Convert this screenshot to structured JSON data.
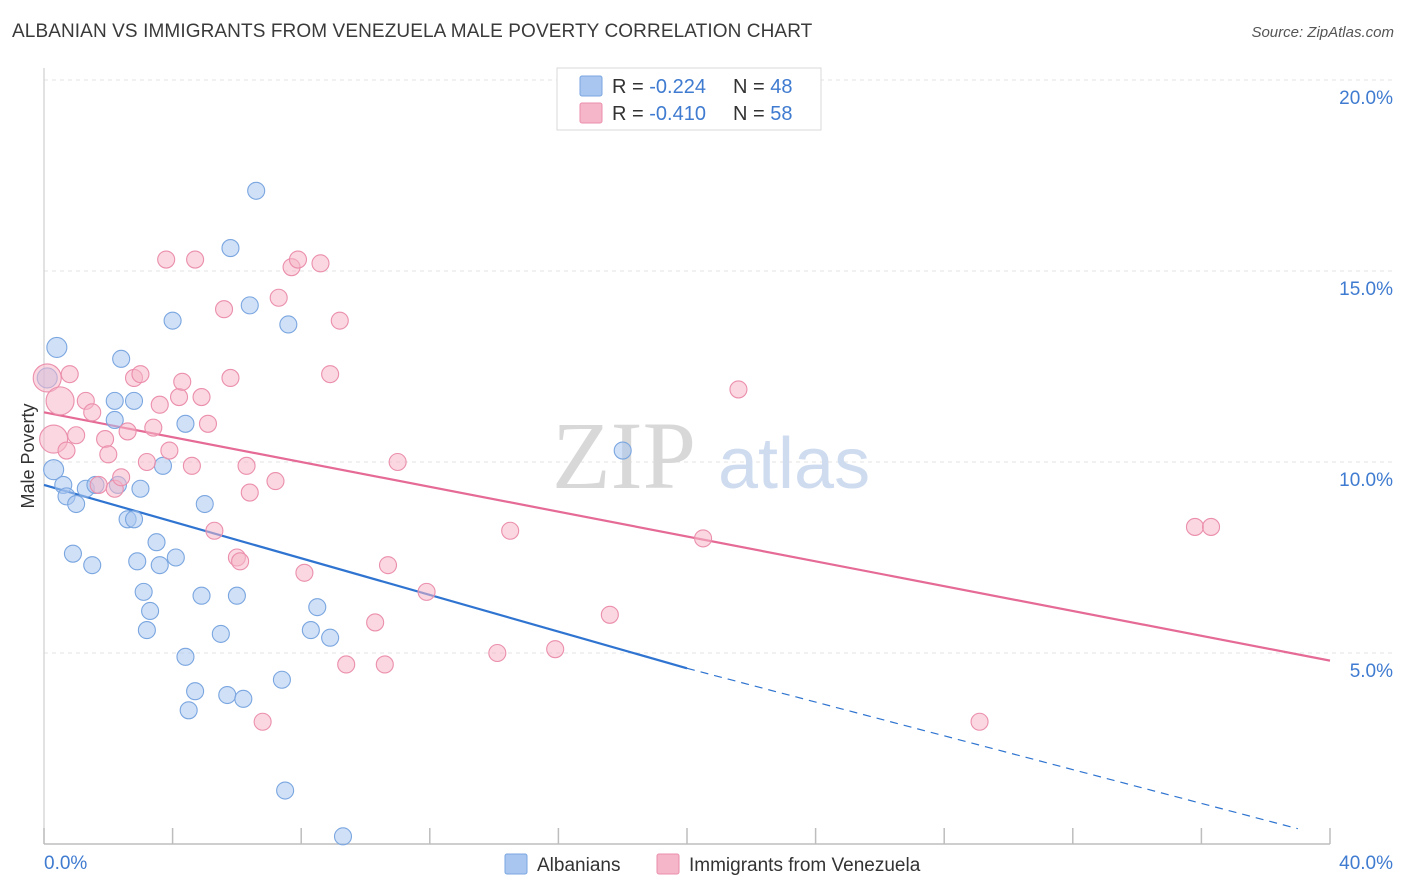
{
  "header": {
    "title": "ALBANIAN VS IMMIGRANTS FROM VENEZUELA MALE POVERTY CORRELATION CHART",
    "source": "Source: ZipAtlas.com"
  },
  "watermark": {
    "zip": "ZIP",
    "atlas": "atlas"
  },
  "legend_top": [
    {
      "r_label": "R = ",
      "r_value": "-0.224",
      "n_label": "N = ",
      "n_value": "48",
      "color": "#a9c6f0"
    },
    {
      "r_label": "R = ",
      "r_value": "-0.410",
      "n_label": "N = ",
      "n_value": "58",
      "color": "#f6b6c9"
    }
  ],
  "legend_bottom": [
    {
      "label": "Albanians",
      "color": "#a9c6f0"
    },
    {
      "label": "Immigrants from Venezuela",
      "color": "#f6b6c9"
    }
  ],
  "chart_data": {
    "type": "scatter",
    "title": "ALBANIAN VS IMMIGRANTS FROM VENEZUELA MALE POVERTY CORRELATION CHART",
    "xlabel": "",
    "ylabel": "Male Poverty",
    "xlim": [
      0,
      40
    ],
    "ylim": [
      0,
      20
    ],
    "x_tick_labels": [
      "0.0%",
      "40.0%"
    ],
    "y_ticks": [
      5,
      10,
      15,
      20
    ],
    "y_tick_labels": [
      "5.0%",
      "10.0%",
      "15.0%",
      "20.0%"
    ],
    "grid": true,
    "legend_position": "top-center",
    "series": [
      {
        "name": "Albanians",
        "color": "#a9c6f0",
        "stroke": "#7aa6e0",
        "line_color": "#2f74d0",
        "trend": {
          "x0": 0,
          "y0": 9.4,
          "x1": 20,
          "y1": 4.6,
          "dashed_to_x": 39,
          "dashed_to_y": 0.4
        },
        "points": [
          [
            0.1,
            12.2
          ],
          [
            0.4,
            13.0
          ],
          [
            0.3,
            9.8
          ],
          [
            0.6,
            9.4
          ],
          [
            0.7,
            9.1
          ],
          [
            1.0,
            8.9
          ],
          [
            1.3,
            9.3
          ],
          [
            1.6,
            9.4
          ],
          [
            0.9,
            7.6
          ],
          [
            1.5,
            7.3
          ],
          [
            2.4,
            12.7
          ],
          [
            2.8,
            11.6
          ],
          [
            2.2,
            11.6
          ],
          [
            2.2,
            11.1
          ],
          [
            3.0,
            9.3
          ],
          [
            2.6,
            8.5
          ],
          [
            2.8,
            8.5
          ],
          [
            2.9,
            7.4
          ],
          [
            3.5,
            7.9
          ],
          [
            3.6,
            7.3
          ],
          [
            4.1,
            7.5
          ],
          [
            3.1,
            6.6
          ],
          [
            3.3,
            6.1
          ],
          [
            3.2,
            5.6
          ],
          [
            3.7,
            9.9
          ],
          [
            4.4,
            11.0
          ],
          [
            5.0,
            8.9
          ],
          [
            4.0,
            13.7
          ],
          [
            4.4,
            4.9
          ],
          [
            4.7,
            4.0
          ],
          [
            4.5,
            3.5
          ],
          [
            4.9,
            6.5
          ],
          [
            5.5,
            5.5
          ],
          [
            5.7,
            3.9
          ],
          [
            6.0,
            6.5
          ],
          [
            6.2,
            3.8
          ],
          [
            5.8,
            15.6
          ],
          [
            6.4,
            14.1
          ],
          [
            6.6,
            17.1
          ],
          [
            7.6,
            13.6
          ],
          [
            7.4,
            4.3
          ],
          [
            7.5,
            1.4
          ],
          [
            8.3,
            5.6
          ],
          [
            8.9,
            5.4
          ],
          [
            8.5,
            6.2
          ],
          [
            9.3,
            0.2
          ],
          [
            18.0,
            10.3
          ],
          [
            2.3,
            9.4
          ]
        ]
      },
      {
        "name": "Immigrants from Venezuela",
        "color": "#f6b6c9",
        "stroke": "#eb8fac",
        "line_color": "#e56a95",
        "trend": {
          "x0": 0,
          "y0": 11.3,
          "x1": 40,
          "y1": 4.8
        },
        "points": [
          [
            0.1,
            12.2
          ],
          [
            0.3,
            10.6
          ],
          [
            0.5,
            11.6
          ],
          [
            0.7,
            10.3
          ],
          [
            0.8,
            12.3
          ],
          [
            1.0,
            10.7
          ],
          [
            1.3,
            11.6
          ],
          [
            1.5,
            11.3
          ],
          [
            1.7,
            9.4
          ],
          [
            1.9,
            10.6
          ],
          [
            2.0,
            10.2
          ],
          [
            2.2,
            9.3
          ],
          [
            2.4,
            9.6
          ],
          [
            2.6,
            10.8
          ],
          [
            2.8,
            12.2
          ],
          [
            3.0,
            12.3
          ],
          [
            3.2,
            10.0
          ],
          [
            3.4,
            10.9
          ],
          [
            3.6,
            11.5
          ],
          [
            3.9,
            10.3
          ],
          [
            4.2,
            11.7
          ],
          [
            4.3,
            12.1
          ],
          [
            4.6,
            9.9
          ],
          [
            4.9,
            11.7
          ],
          [
            5.1,
            11.0
          ],
          [
            5.3,
            8.2
          ],
          [
            5.6,
            14.0
          ],
          [
            5.8,
            12.2
          ],
          [
            6.0,
            7.5
          ],
          [
            6.1,
            7.4
          ],
          [
            6.3,
            9.9
          ],
          [
            6.4,
            9.2
          ],
          [
            6.8,
            3.2
          ],
          [
            7.2,
            9.5
          ],
          [
            7.3,
            14.3
          ],
          [
            7.7,
            15.1
          ],
          [
            7.9,
            15.3
          ],
          [
            8.1,
            7.1
          ],
          [
            8.6,
            15.2
          ],
          [
            9.2,
            13.7
          ],
          [
            9.4,
            4.7
          ],
          [
            8.9,
            12.3
          ],
          [
            10.3,
            5.8
          ],
          [
            10.6,
            4.7
          ],
          [
            10.7,
            7.3
          ],
          [
            11.0,
            10.0
          ],
          [
            11.9,
            6.6
          ],
          [
            14.5,
            8.2
          ],
          [
            14.1,
            5.0
          ],
          [
            15.9,
            5.1
          ],
          [
            17.6,
            6.0
          ],
          [
            20.5,
            8.0
          ],
          [
            21.6,
            11.9
          ],
          [
            29.1,
            3.2
          ],
          [
            35.8,
            8.3
          ],
          [
            36.3,
            8.3
          ],
          [
            3.8,
            15.3
          ],
          [
            4.7,
            15.3
          ]
        ]
      }
    ]
  }
}
